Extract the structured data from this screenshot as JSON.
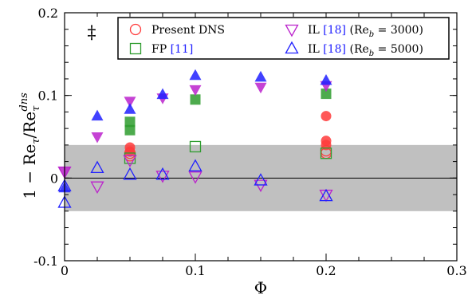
{
  "chart_data": {
    "type": "scatter",
    "xlabel": "Φ",
    "ylabel": "1 − Re",
    "ylabel_parts": {
      "sub": "τ",
      "slash": "/Re",
      "sub2": "τ",
      "sup": "dns"
    },
    "xlim": [
      0,
      0.3
    ],
    "ylim": [
      -0.1,
      0.2
    ],
    "xticks": [
      0,
      0.1,
      0.2,
      0.3
    ],
    "xtick_labels": [
      "0",
      "0.1",
      "0.2",
      "0.3"
    ],
    "yticks": [
      -0.1,
      0,
      0.1,
      0.2
    ],
    "ytick_labels": [
      "-0.1",
      "0",
      "0.1",
      "0.2"
    ],
    "band": [
      -0.04,
      0.04
    ],
    "errorbar_symbol": "‡",
    "legend_position": "top-right",
    "series": [
      {
        "name": "Present DNS",
        "marker": "circle",
        "color": "#ff3b3b",
        "open": [
          [
            0.05,
            0.03
          ],
          [
            0.05,
            0.027
          ],
          [
            0.2,
            0.03
          ],
          [
            0.2,
            0.033
          ]
        ],
        "filled": [
          [
            0.05,
            0.037
          ],
          [
            0.05,
            0.032
          ],
          [
            0.2,
            0.075
          ],
          [
            0.2,
            0.045
          ],
          [
            0.2,
            0.04
          ]
        ]
      },
      {
        "name": "FP [11]",
        "marker": "square",
        "color": "#2e9c2e",
        "open": [
          [
            0.05,
            0.024
          ],
          [
            0.1,
            0.038
          ],
          [
            0.2,
            0.03
          ]
        ],
        "filled": [
          [
            0.05,
            0.068
          ],
          [
            0.05,
            0.058
          ],
          [
            0.1,
            0.095
          ],
          [
            0.2,
            0.102
          ]
        ]
      },
      {
        "name": "IL [18] (Re_b = 3000)",
        "marker": "triangle-down",
        "color": "#bb22cc",
        "open": [
          [
            0,
            0.008
          ],
          [
            0.025,
            -0.01
          ],
          [
            0.05,
            0.022
          ],
          [
            0.075,
            0.003
          ],
          [
            0.1,
            0.002
          ],
          [
            0.15,
            -0.008
          ],
          [
            0.2,
            -0.02
          ]
        ],
        "filled": [
          [
            0,
            0.008
          ],
          [
            0.025,
            0.05
          ],
          [
            0.05,
            0.093
          ],
          [
            0.075,
            0.097
          ],
          [
            0.1,
            0.107
          ],
          [
            0.15,
            0.11
          ],
          [
            0.2,
            0.112
          ]
        ]
      },
      {
        "name": "IL [18] (Re_b = 5000)",
        "marker": "triangle-up",
        "color": "#2020ff",
        "open": [
          [
            0,
            -0.03
          ],
          [
            0,
            -0.01
          ],
          [
            0.025,
            0.012
          ],
          [
            0.05,
            0.004
          ],
          [
            0.075,
            0.004
          ],
          [
            0.1,
            0.014
          ],
          [
            0.15,
            -0.003
          ],
          [
            0.2,
            -0.022
          ]
        ],
        "filled": [
          [
            0,
            -0.012
          ],
          [
            0.025,
            0.075
          ],
          [
            0.05,
            0.083
          ],
          [
            0.075,
            0.101
          ],
          [
            0.1,
            0.124
          ],
          [
            0.15,
            0.122
          ],
          [
            0.2,
            0.118
          ]
        ]
      }
    ],
    "legend": [
      {
        "label": "Present DNS",
        "ref": ""
      },
      {
        "label": "FP ",
        "ref": "[11]"
      },
      {
        "label": "IL ",
        "ref": "[18]",
        "suffix": " (Re_b = 3000)"
      },
      {
        "label": "IL ",
        "ref": "[18]",
        "suffix": " (Re_b = 5000)"
      }
    ]
  },
  "colors": {
    "band": "#c0c0c0",
    "ref_link": "#2020ff"
  }
}
